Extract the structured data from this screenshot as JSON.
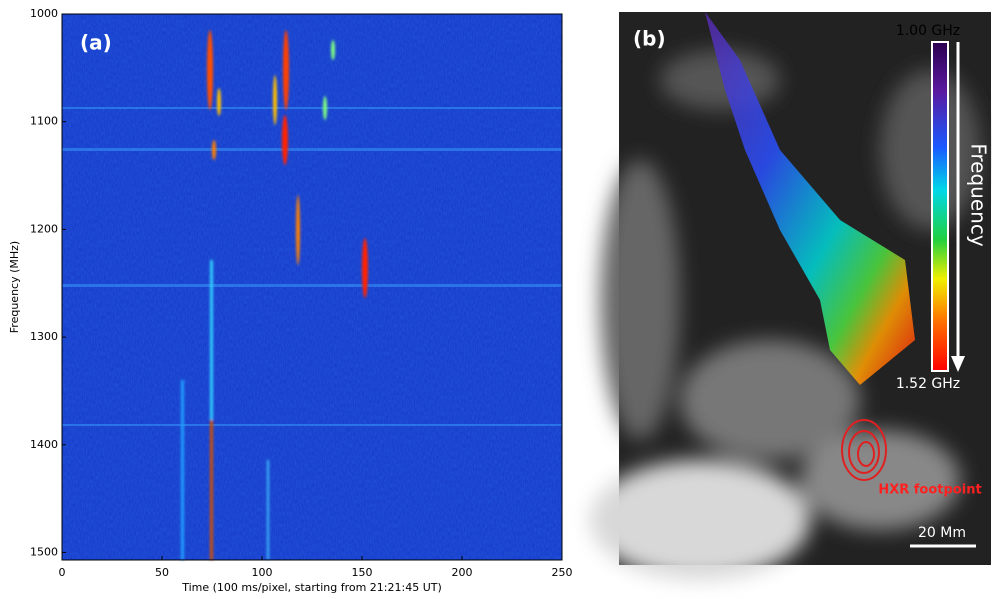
{
  "chart_data": [
    {
      "type": "spectrogram",
      "panel_label": "(a)",
      "x_label": "Time (100 ms/pixel, starting from 21:21:45 UT)",
      "y_label": "Frequency (MHz)",
      "xlim": [
        0,
        250
      ],
      "xticks": [
        0,
        50,
        100,
        150,
        200,
        250
      ],
      "ylim": [
        1507,
        1000
      ],
      "yticks": [
        1000,
        1100,
        1200,
        1300,
        1400,
        1500
      ]
    },
    {
      "type": "image",
      "panel_label": "(b)",
      "colorbar_top": "1.00 GHz",
      "colorbar_bottom": "1.52 GHz",
      "colorbar_label": "Frequency",
      "annotation": "HXR footpoint",
      "scale_bar": "20 Mm"
    }
  ]
}
